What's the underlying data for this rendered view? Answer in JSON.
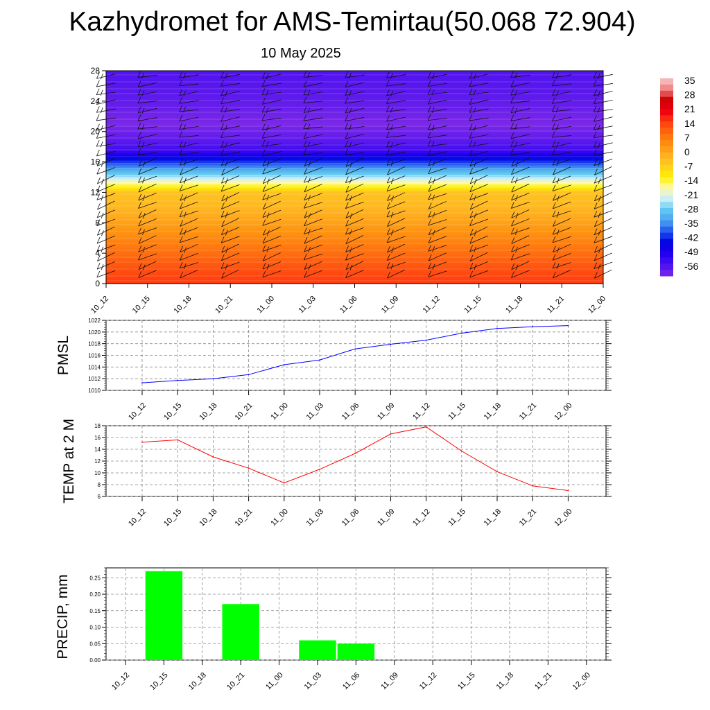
{
  "title": "Kazhydromet for AMS-Temirtau(50.068 72.904)",
  "subtitle": "10 May 2025",
  "time_labels": [
    "10_12",
    "10_15",
    "10_18",
    "10_21",
    "11_00",
    "11_03",
    "11_06",
    "11_09",
    "11_12",
    "11_15",
    "11_18",
    "11_21",
    "12_00"
  ],
  "chart_data": [
    {
      "type": "heatmap",
      "description_field": "temperature cross-section with wind barbs",
      "x": [
        "10_12",
        "10_15",
        "10_18",
        "10_21",
        "11_00",
        "11_03",
        "11_06",
        "11_09",
        "11_12",
        "11_15",
        "11_18",
        "11_21",
        "12_00"
      ],
      "y_ticks": [
        0,
        4,
        8,
        12,
        16,
        20,
        24,
        28
      ],
      "ylim": [
        0,
        28
      ],
      "colorbar_labels": [
        "35",
        "28",
        "21",
        "14",
        "7",
        "0",
        "-7",
        "-14",
        "-21",
        "-28",
        "-35",
        "-42",
        "-49",
        "-56"
      ],
      "colorbar_range": [
        -63,
        39
      ],
      "colorbar_colors": [
        "#7b28e8",
        "#4a10f0",
        "#2200f0",
        "#0000e0",
        "#2050f0",
        "#4aa0f0",
        "#60c8f0",
        "#c8eef8",
        "#fffab0",
        "#fff000",
        "#ffd020",
        "#ffb020",
        "#ff9010",
        "#ff6a10",
        "#ff4010",
        "#f00010",
        "#d00000",
        "#f08080",
        "#f8c8c8"
      ],
      "levels": [
        {
          "z": 28,
          "t": -58
        },
        {
          "z": 24,
          "t": -60
        },
        {
          "z": 21,
          "t": -63
        },
        {
          "z": 19,
          "t": -60
        },
        {
          "z": 17.5,
          "t": -56
        },
        {
          "z": 16,
          "t": -42
        },
        {
          "z": 14,
          "t": -25
        },
        {
          "z": 12.5,
          "t": -10
        },
        {
          "z": 12,
          "t": -4
        },
        {
          "z": 10,
          "t": -2
        },
        {
          "z": 8,
          "t": 2
        },
        {
          "z": 6,
          "t": 6
        },
        {
          "z": 4,
          "t": 10
        },
        {
          "z": 2,
          "t": 14
        },
        {
          "z": 0,
          "t": 17
        }
      ]
    },
    {
      "type": "line",
      "ylabel": "PMSL",
      "x": [
        "10_12",
        "10_15",
        "10_18",
        "10_21",
        "11_00",
        "11_03",
        "11_06",
        "11_09",
        "11_12",
        "11_15",
        "11_18",
        "11_21",
        "12_00"
      ],
      "values": [
        1011.3,
        1011.7,
        1012.0,
        1012.7,
        1014.4,
        1015.2,
        1017.1,
        1017.9,
        1018.6,
        1019.8,
        1020.6,
        1020.9,
        1021.1
      ],
      "ylim": [
        1010,
        1022
      ],
      "y_ticks": [
        1010,
        1012,
        1014,
        1016,
        1018,
        1020,
        1022
      ],
      "color": "#0000ff"
    },
    {
      "type": "line",
      "ylabel": "TEMP at 2 M",
      "x": [
        "10_12",
        "10_15",
        "10_18",
        "10_21",
        "11_00",
        "11_03",
        "11_06",
        "11_09",
        "11_12",
        "11_15",
        "11_18",
        "11_21",
        "12_00"
      ],
      "values": [
        15.2,
        15.6,
        12.7,
        10.8,
        8.3,
        10.6,
        13.3,
        16.6,
        17.8,
        13.7,
        10.2,
        7.8,
        7.0
      ],
      "ylim": [
        6,
        18
      ],
      "y_ticks": [
        6,
        8,
        10,
        12,
        14,
        16,
        18
      ],
      "color": "#ff0000"
    },
    {
      "type": "bar",
      "ylabel": "PRECIP, mm",
      "categories": [
        "10_12",
        "10_15",
        "10_18",
        "10_21",
        "11_00",
        "11_03",
        "11_06",
        "11_09",
        "11_12",
        "11_15",
        "11_18",
        "11_21",
        "12_00"
      ],
      "values": [
        0,
        0.27,
        0,
        0.17,
        0,
        0.06,
        0.05,
        0,
        0,
        0,
        0,
        0,
        0
      ],
      "ylim": [
        0,
        0.28
      ],
      "y_ticks": [
        "0.00",
        "0.05",
        "0.10",
        "0.15",
        "0.20",
        "0.25"
      ],
      "color": "#00ff00"
    }
  ]
}
